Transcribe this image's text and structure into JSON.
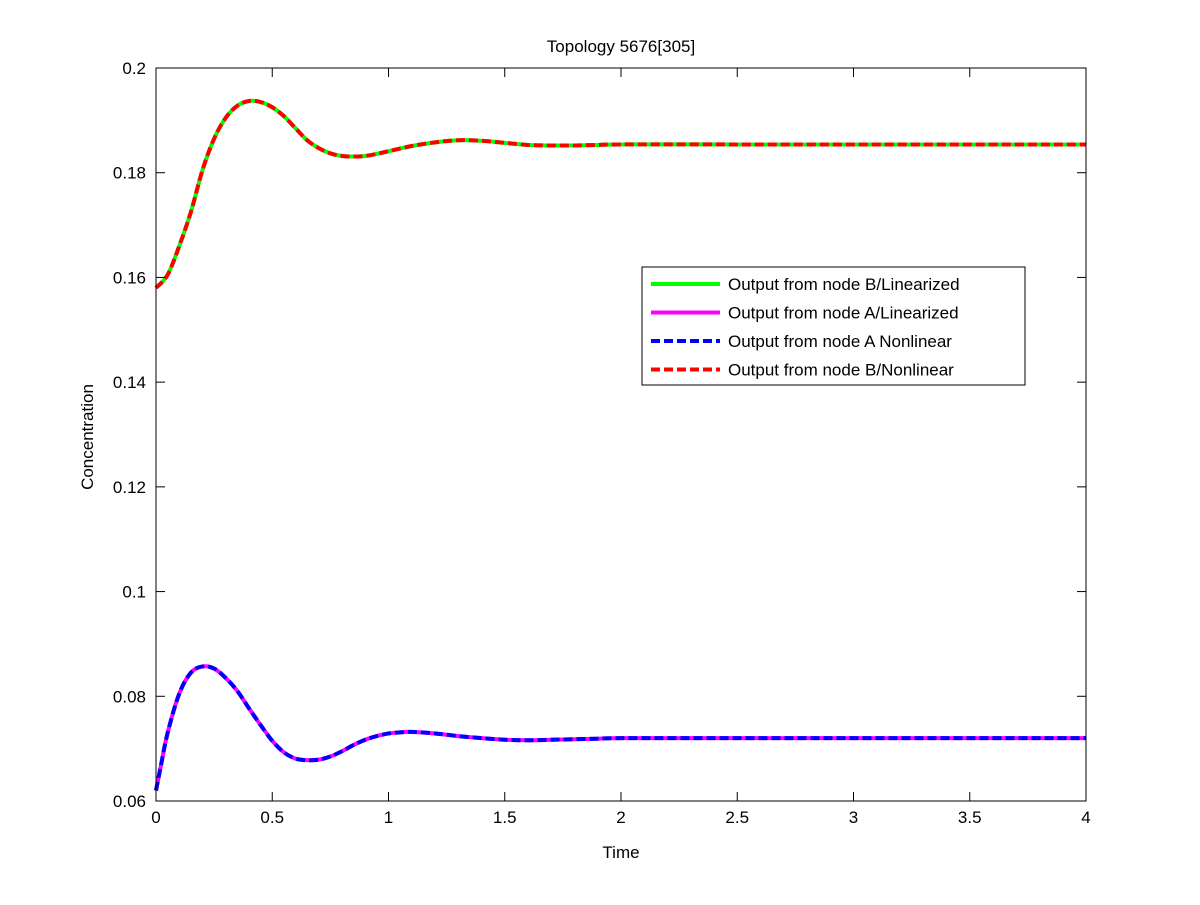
{
  "chart_data": {
    "type": "line",
    "title": "Topology 5676[305]",
    "xlabel": "Time",
    "ylabel": "Concentration",
    "xlim": [
      0,
      4
    ],
    "ylim": [
      0.06,
      0.2
    ],
    "xticks": [
      0,
      0.5,
      1,
      1.5,
      2,
      2.5,
      3,
      3.5,
      4
    ],
    "xtick_labels": [
      "0",
      "0.5",
      "1",
      "1.5",
      "2",
      "2.5",
      "3",
      "3.5",
      "4"
    ],
    "yticks": [
      0.06,
      0.08,
      0.1,
      0.12,
      0.14,
      0.16,
      0.18,
      0.2
    ],
    "ytick_labels": [
      "0.06",
      "0.08",
      "0.1",
      "0.12",
      "0.14",
      "0.16",
      "0.18",
      "0.2"
    ],
    "grid": false,
    "legend_position": "right",
    "series": [
      {
        "name": "Output from node B/Linearized",
        "color": "#00ff00",
        "dash": "solid",
        "x": [
          0,
          0.05,
          0.1,
          0.15,
          0.2,
          0.25,
          0.3,
          0.35,
          0.4,
          0.45,
          0.5,
          0.55,
          0.6,
          0.65,
          0.7,
          0.75,
          0.8,
          0.85,
          0.9,
          0.95,
          1.0,
          1.1,
          1.2,
          1.3,
          1.4,
          1.5,
          1.6,
          1.7,
          1.8,
          1.9,
          2.0,
          2.5,
          3.0,
          3.5,
          4.0
        ],
        "y": [
          0.158,
          0.1605,
          0.166,
          0.1725,
          0.1805,
          0.1865,
          0.1905,
          0.1928,
          0.1937,
          0.1935,
          0.1925,
          0.1908,
          0.1885,
          0.1862,
          0.1847,
          0.1837,
          0.1832,
          0.1831,
          0.1832,
          0.1836,
          0.1841,
          0.1851,
          0.1858,
          0.1862,
          0.1861,
          0.1857,
          0.1853,
          0.1852,
          0.1852,
          0.1853,
          0.1854,
          0.1854,
          0.1854,
          0.1854,
          0.1854
        ]
      },
      {
        "name": "Output from node A/Linearized",
        "color": "#ff00ff",
        "dash": "solid",
        "x": [
          0,
          0.02,
          0.05,
          0.1,
          0.15,
          0.2,
          0.25,
          0.3,
          0.35,
          0.4,
          0.45,
          0.5,
          0.55,
          0.6,
          0.65,
          0.7,
          0.75,
          0.8,
          0.85,
          0.9,
          0.95,
          1.0,
          1.05,
          1.1,
          1.2,
          1.3,
          1.4,
          1.5,
          1.6,
          1.7,
          1.8,
          1.9,
          2.0,
          2.5,
          3.0,
          3.5,
          4.0
        ],
        "y": [
          0.062,
          0.0665,
          0.073,
          0.0805,
          0.0845,
          0.0857,
          0.0853,
          0.0835,
          0.081,
          0.0777,
          0.0745,
          0.0715,
          0.0693,
          0.0681,
          0.0678,
          0.0679,
          0.0685,
          0.0695,
          0.0707,
          0.0717,
          0.0724,
          0.0729,
          0.0731,
          0.0732,
          0.0729,
          0.0724,
          0.072,
          0.0717,
          0.0716,
          0.0717,
          0.0718,
          0.0719,
          0.072,
          0.072,
          0.072,
          0.072,
          0.072
        ]
      },
      {
        "name": "Output from node A  Nonlinear",
        "color": "#0000ff",
        "dash": "dashed",
        "x": [
          0,
          0.02,
          0.05,
          0.1,
          0.15,
          0.2,
          0.25,
          0.3,
          0.35,
          0.4,
          0.45,
          0.5,
          0.55,
          0.6,
          0.65,
          0.7,
          0.75,
          0.8,
          0.85,
          0.9,
          0.95,
          1.0,
          1.05,
          1.1,
          1.2,
          1.3,
          1.4,
          1.5,
          1.6,
          1.7,
          1.8,
          1.9,
          2.0,
          2.5,
          3.0,
          3.5,
          4.0
        ],
        "y": [
          0.062,
          0.0665,
          0.073,
          0.0805,
          0.0845,
          0.0857,
          0.0853,
          0.0835,
          0.081,
          0.0777,
          0.0745,
          0.0715,
          0.0693,
          0.0681,
          0.0678,
          0.0679,
          0.0685,
          0.0695,
          0.0707,
          0.0717,
          0.0724,
          0.0729,
          0.0731,
          0.0732,
          0.0729,
          0.0724,
          0.072,
          0.0717,
          0.0716,
          0.0717,
          0.0718,
          0.0719,
          0.072,
          0.072,
          0.072,
          0.072,
          0.072
        ]
      },
      {
        "name": "Output from node B/Nonlinear",
        "color": "#ff0000",
        "dash": "dashed",
        "x": [
          0,
          0.05,
          0.1,
          0.15,
          0.2,
          0.25,
          0.3,
          0.35,
          0.4,
          0.45,
          0.5,
          0.55,
          0.6,
          0.65,
          0.7,
          0.75,
          0.8,
          0.85,
          0.9,
          0.95,
          1.0,
          1.1,
          1.2,
          1.3,
          1.4,
          1.5,
          1.6,
          1.7,
          1.8,
          1.9,
          2.0,
          2.5,
          3.0,
          3.5,
          4.0
        ],
        "y": [
          0.158,
          0.1605,
          0.166,
          0.1725,
          0.1805,
          0.1865,
          0.1905,
          0.1928,
          0.1937,
          0.1935,
          0.1925,
          0.1908,
          0.1885,
          0.1862,
          0.1847,
          0.1837,
          0.1832,
          0.1831,
          0.1832,
          0.1836,
          0.1841,
          0.1851,
          0.1858,
          0.1862,
          0.1861,
          0.1857,
          0.1853,
          0.1852,
          0.1852,
          0.1853,
          0.1854,
          0.1854,
          0.1854,
          0.1854,
          0.1854
        ]
      }
    ]
  }
}
